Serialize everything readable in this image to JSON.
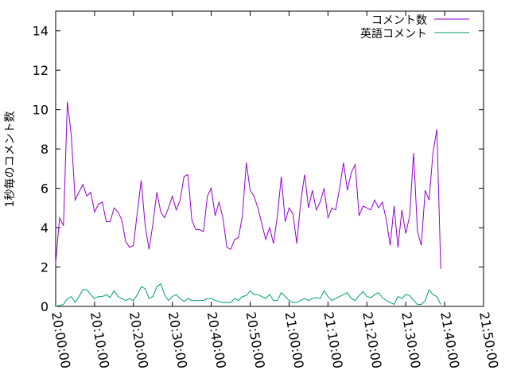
{
  "chart_data": {
    "type": "line",
    "ylabel": "1秒毎のコメント数",
    "xlabel": "",
    "ylim": [
      0,
      15
    ],
    "yticks": [
      0,
      2,
      4,
      6,
      8,
      10,
      12,
      14
    ],
    "xlim": [
      "20:00:00",
      "21:50:00"
    ],
    "xticks": [
      "20:00:00",
      "20:10:00",
      "20:20:00",
      "20:30:00",
      "20:40:00",
      "20:50:00",
      "21:00:00",
      "21:10:00",
      "21:20:00",
      "21:30:00",
      "21:40:00",
      "21:50:00"
    ],
    "grid": false,
    "legend_position": "top-right",
    "series": [
      {
        "name": "コメント数",
        "color": "#9400d3",
        "points": [
          [
            "20:00:00",
            2.2
          ],
          [
            "20:01:00",
            4.5
          ],
          [
            "20:02:00",
            4.1
          ],
          [
            "20:03:00",
            10.4
          ],
          [
            "20:04:00",
            8.7
          ],
          [
            "20:05:00",
            5.4
          ],
          [
            "20:06:00",
            5.8
          ],
          [
            "20:07:00",
            6.2
          ],
          [
            "20:08:00",
            5.6
          ],
          [
            "20:09:00",
            5.8
          ],
          [
            "20:10:00",
            4.8
          ],
          [
            "20:11:00",
            5.2
          ],
          [
            "20:12:00",
            5.3
          ],
          [
            "20:13:00",
            4.3
          ],
          [
            "20:14:00",
            4.3
          ],
          [
            "20:15:00",
            5.0
          ],
          [
            "20:16:00",
            4.8
          ],
          [
            "20:17:00",
            4.4
          ],
          [
            "20:18:00",
            3.3
          ],
          [
            "20:19:00",
            3.0
          ],
          [
            "20:20:00",
            3.1
          ],
          [
            "20:21:00",
            4.8
          ],
          [
            "20:22:00",
            6.4
          ],
          [
            "20:23:00",
            4.1
          ],
          [
            "20:24:00",
            2.9
          ],
          [
            "20:25:00",
            4.2
          ],
          [
            "20:26:00",
            5.8
          ],
          [
            "20:27:00",
            4.8
          ],
          [
            "20:28:00",
            4.5
          ],
          [
            "20:29:00",
            5.0
          ],
          [
            "20:30:00",
            5.6
          ],
          [
            "20:31:00",
            4.9
          ],
          [
            "20:32:00",
            5.4
          ],
          [
            "20:33:00",
            6.6
          ],
          [
            "20:34:00",
            6.7
          ],
          [
            "20:35:00",
            4.4
          ],
          [
            "20:36:00",
            3.9
          ],
          [
            "20:37:00",
            3.9
          ],
          [
            "20:38:00",
            3.8
          ],
          [
            "20:39:00",
            5.6
          ],
          [
            "20:40:00",
            6.0
          ],
          [
            "20:41:00",
            4.6
          ],
          [
            "20:42:00",
            5.3
          ],
          [
            "20:43:00",
            4.5
          ],
          [
            "20:44:00",
            3.0
          ],
          [
            "20:45:00",
            2.9
          ],
          [
            "20:46:00",
            3.4
          ],
          [
            "20:47:00",
            3.5
          ],
          [
            "20:48:00",
            4.6
          ],
          [
            "20:49:00",
            7.3
          ],
          [
            "20:50:00",
            5.9
          ],
          [
            "20:51:00",
            5.6
          ],
          [
            "20:52:00",
            5.0
          ],
          [
            "20:53:00",
            4.2
          ],
          [
            "20:54:00",
            3.4
          ],
          [
            "20:55:00",
            4.0
          ],
          [
            "20:56:00",
            3.2
          ],
          [
            "20:57:00",
            4.6
          ],
          [
            "20:58:00",
            6.6
          ],
          [
            "20:59:00",
            4.3
          ],
          [
            "21:00:00",
            5.0
          ],
          [
            "21:01:00",
            4.7
          ],
          [
            "21:02:00",
            3.2
          ],
          [
            "21:03:00",
            5.3
          ],
          [
            "21:04:00",
            6.7
          ],
          [
            "21:05:00",
            5.0
          ],
          [
            "21:06:00",
            5.9
          ],
          [
            "21:07:00",
            4.9
          ],
          [
            "21:08:00",
            5.3
          ],
          [
            "21:09:00",
            6.0
          ],
          [
            "21:10:00",
            4.5
          ],
          [
            "21:11:00",
            5.0
          ],
          [
            "21:12:00",
            4.9
          ],
          [
            "21:13:00",
            6.0
          ],
          [
            "21:14:00",
            7.3
          ],
          [
            "21:15:00",
            5.9
          ],
          [
            "21:16:00",
            6.8
          ],
          [
            "21:17:00",
            7.2
          ],
          [
            "21:18:00",
            4.6
          ],
          [
            "21:19:00",
            5.1
          ],
          [
            "21:20:00",
            5.0
          ],
          [
            "21:21:00",
            4.9
          ],
          [
            "21:22:00",
            5.4
          ],
          [
            "21:23:00",
            5.0
          ],
          [
            "21:24:00",
            5.3
          ],
          [
            "21:25:00",
            4.4
          ],
          [
            "21:26:00",
            3.1
          ],
          [
            "21:27:00",
            5.1
          ],
          [
            "21:28:00",
            3.0
          ],
          [
            "21:29:00",
            4.9
          ],
          [
            "21:30:00",
            3.7
          ],
          [
            "21:31:00",
            4.6
          ],
          [
            "21:32:00",
            7.8
          ],
          [
            "21:33:00",
            3.8
          ],
          [
            "21:34:00",
            3.1
          ],
          [
            "21:35:00",
            5.9
          ],
          [
            "21:36:00",
            5.4
          ],
          [
            "21:37:00",
            7.8
          ],
          [
            "21:38:00",
            9.0
          ],
          [
            "21:39:00",
            1.9
          ]
        ]
      },
      {
        "name": "英語コメント",
        "color": "#009e73",
        "points": [
          [
            "20:00:00",
            0.0
          ],
          [
            "20:01:00",
            0.05
          ],
          [
            "20:02:00",
            0.1
          ],
          [
            "20:03:00",
            0.4
          ],
          [
            "20:04:00",
            0.5
          ],
          [
            "20:05:00",
            0.2
          ],
          [
            "20:06:00",
            0.5
          ],
          [
            "20:07:00",
            0.85
          ],
          [
            "20:08:00",
            0.85
          ],
          [
            "20:09:00",
            0.6
          ],
          [
            "20:10:00",
            0.4
          ],
          [
            "20:11:00",
            0.5
          ],
          [
            "20:12:00",
            0.5
          ],
          [
            "20:13:00",
            0.6
          ],
          [
            "20:14:00",
            0.45
          ],
          [
            "20:15:00",
            0.8
          ],
          [
            "20:16:00",
            0.5
          ],
          [
            "20:17:00",
            0.4
          ],
          [
            "20:18:00",
            0.3
          ],
          [
            "20:19:00",
            0.4
          ],
          [
            "20:20:00",
            0.3
          ],
          [
            "20:21:00",
            0.6
          ],
          [
            "20:22:00",
            1.0
          ],
          [
            "20:23:00",
            0.9
          ],
          [
            "20:24:00",
            0.4
          ],
          [
            "20:25:00",
            0.5
          ],
          [
            "20:26:00",
            1.0
          ],
          [
            "20:27:00",
            1.15
          ],
          [
            "20:28:00",
            0.6
          ],
          [
            "20:29:00",
            0.3
          ],
          [
            "20:30:00",
            0.5
          ],
          [
            "20:31:00",
            0.6
          ],
          [
            "20:32:00",
            0.4
          ],
          [
            "20:33:00",
            0.25
          ],
          [
            "20:34:00",
            0.4
          ],
          [
            "20:35:00",
            0.3
          ],
          [
            "20:36:00",
            0.3
          ],
          [
            "20:37:00",
            0.3
          ],
          [
            "20:38:00",
            0.3
          ],
          [
            "20:39:00",
            0.4
          ],
          [
            "20:40:00",
            0.4
          ],
          [
            "20:41:00",
            0.3
          ],
          [
            "20:42:00",
            0.25
          ],
          [
            "20:43:00",
            0.2
          ],
          [
            "20:44:00",
            0.2
          ],
          [
            "20:45:00",
            0.2
          ],
          [
            "20:46:00",
            0.4
          ],
          [
            "20:47:00",
            0.3
          ],
          [
            "20:48:00",
            0.5
          ],
          [
            "20:49:00",
            0.55
          ],
          [
            "20:50:00",
            0.8
          ],
          [
            "20:51:00",
            0.6
          ],
          [
            "20:52:00",
            0.6
          ],
          [
            "20:53:00",
            0.5
          ],
          [
            "20:54:00",
            0.4
          ],
          [
            "20:55:00",
            0.6
          ],
          [
            "20:56:00",
            0.3
          ],
          [
            "20:57:00",
            0.3
          ],
          [
            "20:58:00",
            0.7
          ],
          [
            "20:59:00",
            0.5
          ],
          [
            "21:00:00",
            0.3
          ],
          [
            "21:01:00",
            0.2
          ],
          [
            "21:02:00",
            0.2
          ],
          [
            "21:03:00",
            0.3
          ],
          [
            "21:04:00",
            0.4
          ],
          [
            "21:05:00",
            0.3
          ],
          [
            "21:06:00",
            0.4
          ],
          [
            "21:07:00",
            0.45
          ],
          [
            "21:08:00",
            0.4
          ],
          [
            "21:09:00",
            0.8
          ],
          [
            "21:10:00",
            0.5
          ],
          [
            "21:11:00",
            0.3
          ],
          [
            "21:12:00",
            0.4
          ],
          [
            "21:13:00",
            0.5
          ],
          [
            "21:14:00",
            0.6
          ],
          [
            "21:15:00",
            0.7
          ],
          [
            "21:16:00",
            0.4
          ],
          [
            "21:17:00",
            0.3
          ],
          [
            "21:18:00",
            0.55
          ],
          [
            "21:19:00",
            0.75
          ],
          [
            "21:20:00",
            0.5
          ],
          [
            "21:21:00",
            0.45
          ],
          [
            "21:22:00",
            0.6
          ],
          [
            "21:23:00",
            0.7
          ],
          [
            "21:24:00",
            0.45
          ],
          [
            "21:25:00",
            0.3
          ],
          [
            "21:26:00",
            0.2
          ],
          [
            "21:27:00",
            0.1
          ],
          [
            "21:28:00",
            0.5
          ],
          [
            "21:29:00",
            0.4
          ],
          [
            "21:30:00",
            0.6
          ],
          [
            "21:31:00",
            0.55
          ],
          [
            "21:32:00",
            0.3
          ],
          [
            "21:33:00",
            0.1
          ],
          [
            "21:34:00",
            0.1
          ],
          [
            "21:35:00",
            0.3
          ],
          [
            "21:36:00",
            0.85
          ],
          [
            "21:37:00",
            0.6
          ],
          [
            "21:38:00",
            0.5
          ],
          [
            "21:39:00",
            0.1
          ]
        ]
      }
    ]
  }
}
